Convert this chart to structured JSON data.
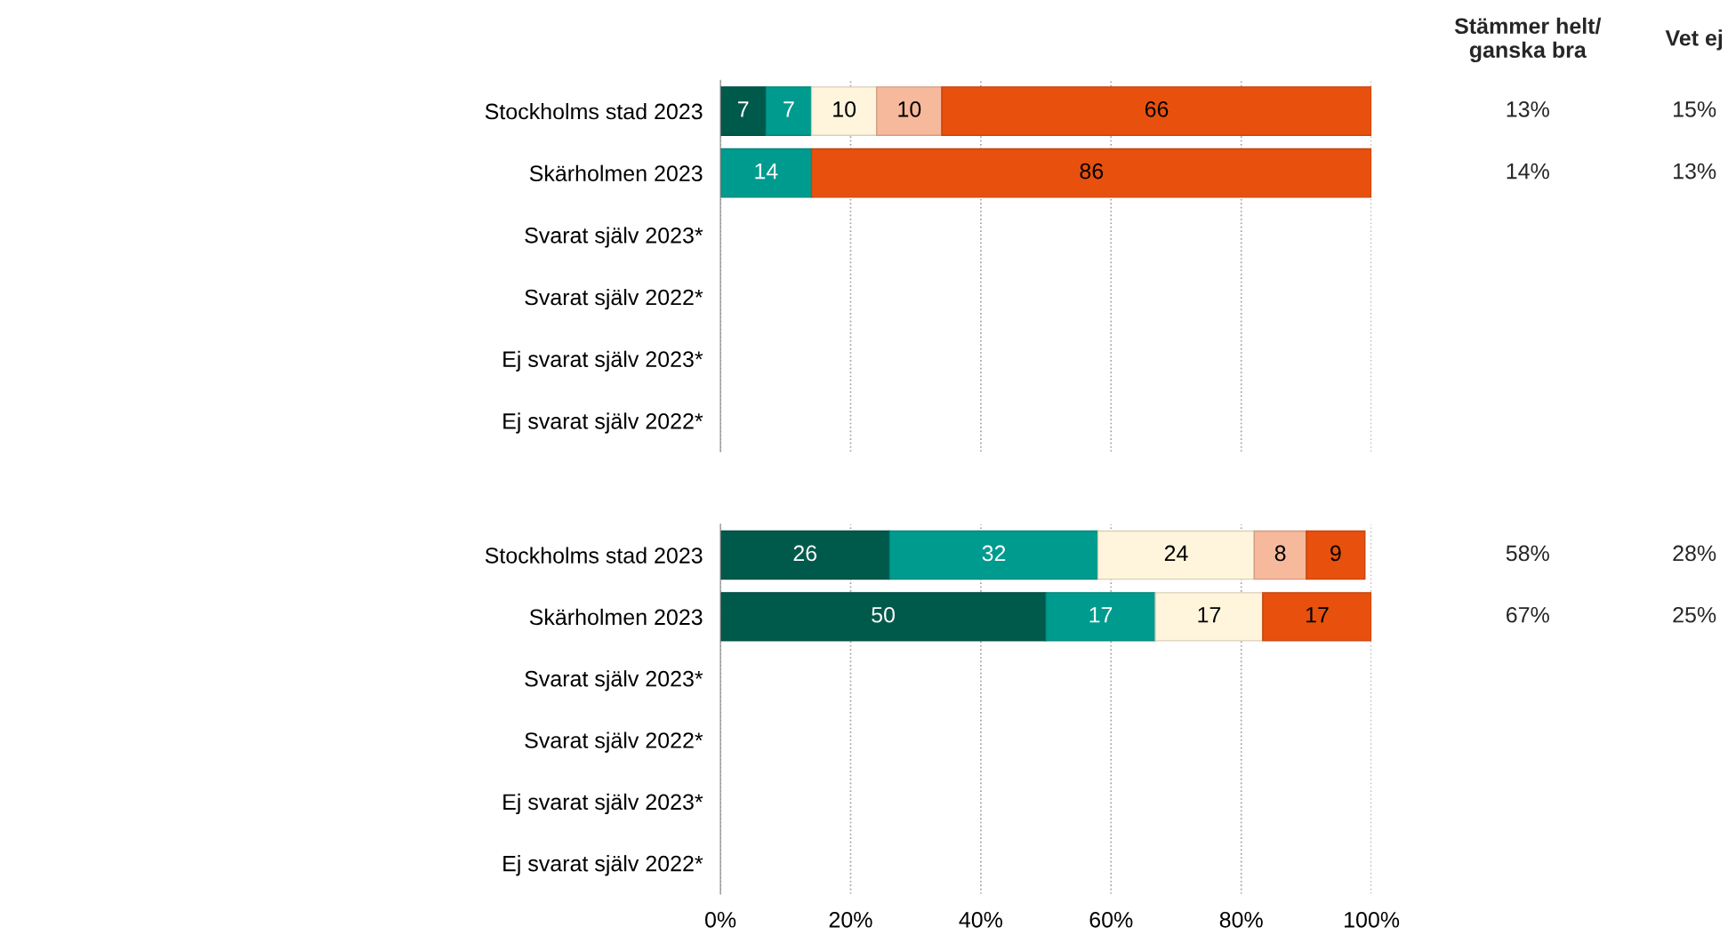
{
  "chart_data": [
    {
      "type": "bar",
      "orientation": "horizontal",
      "stacked": true,
      "data_labels": true,
      "grid": "x",
      "tick_labels": "y",
      "categories": [
        "Stockholms stad 2023",
        "Skärholmen 2023",
        "Svarat själv 2023*",
        "Svarat själv 2022*",
        "Ej svarat själv 2023*",
        "Ej svarat själv 2022*"
      ],
      "series": [
        {
          "color": "#005a4b",
          "values": [
            7,
            null,
            null,
            null,
            null,
            null
          ]
        },
        {
          "color": "#009b8f",
          "values": [
            7,
            14,
            null,
            null,
            null,
            null
          ]
        },
        {
          "color": "#fff5dc",
          "values": [
            10,
            null,
            null,
            null,
            null,
            null
          ]
        },
        {
          "color": "#f7b99b",
          "values": [
            10,
            null,
            null,
            null,
            null,
            null
          ]
        },
        {
          "color": "#e8500e",
          "values": [
            66,
            86,
            null,
            null,
            null,
            null
          ]
        }
      ],
      "xlim": [
        0,
        100
      ],
      "xticks": [
        {
          "value": 0,
          "label": null
        },
        {
          "value": 20,
          "label": null
        },
        {
          "value": 40,
          "label": null
        },
        {
          "value": 60,
          "label": null
        },
        {
          "value": 80,
          "label": null
        },
        {
          "value": 100,
          "label": null
        }
      ],
      "annotations": [
        "Stämmer helt/\nganska bra",
        "Vet ej",
        "13%",
        "15%",
        "14%",
        "13%"
      ]
    },
    {
      "type": "bar",
      "orientation": "horizontal",
      "stacked": true,
      "grid": "x",
      "categories": [
        "Stockholms stad 2023",
        "Skärholmen 2023",
        "Svarat själv 2023*",
        "Svarat själv 2022*",
        "Ej svarat själv 2023*",
        "Ej svarat själv 2022*"
      ],
      "series": [
        {
          "color": "#005a4b",
          "values": [
            26,
            50,
            null,
            null,
            null,
            null
          ],
          "value_labels": [
            "26",
            "50",
            null,
            null,
            null,
            null
          ]
        },
        {
          "color": "#009b8f",
          "values": [
            32,
            16.8,
            null,
            null,
            null,
            null
          ],
          "value_labels": [
            "32",
            "17",
            null,
            null,
            null,
            null
          ]
        },
        {
          "color": "#fff5dc",
          "values": [
            24,
            16.5,
            null,
            null,
            null,
            null
          ],
          "value_labels": [
            "24",
            "17",
            null,
            null,
            null,
            null
          ]
        },
        {
          "color": "#f7b99b",
          "values": [
            8,
            null,
            null,
            null,
            null,
            null
          ],
          "value_labels": [
            "8",
            null,
            null,
            null,
            null,
            null
          ]
        },
        {
          "color": "#e8500e",
          "values": [
            9,
            16.7,
            null,
            null,
            null,
            null
          ],
          "value_labels": [
            "9",
            "17",
            null,
            null,
            null,
            null
          ]
        }
      ],
      "xlim": [
        0,
        100
      ],
      "xticks": [
        {
          "value": 0,
          "label": "0%"
        },
        {
          "value": 20,
          "label": "20%"
        },
        {
          "value": 40,
          "label": "40%"
        },
        {
          "value": 60,
          "label": "60%"
        },
        {
          "value": 80,
          "label": "80%"
        },
        {
          "value": 100,
          "label": "100%"
        }
      ],
      "annotations": [
        "58%",
        "28%",
        "67%",
        "25%"
      ]
    }
  ]
}
